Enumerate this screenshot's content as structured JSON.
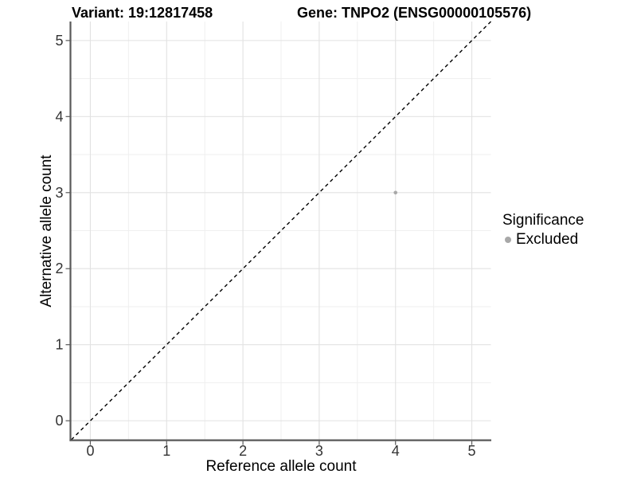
{
  "titles": {
    "variant": "Variant: 19:12817458",
    "gene": "Gene: TNPO2 (ENSG00000105576)"
  },
  "legend": {
    "title": "Significance",
    "items": [
      {
        "label": "Excluded",
        "color": "#a8a8a8"
      }
    ]
  },
  "chart_data": {
    "type": "scatter",
    "title": "Variant: 19:12817458 — Gene: TNPO2 (ENSG00000105576)",
    "xlabel": "Reference allele count",
    "ylabel": "Alternative allele count",
    "xlim": [
      -0.25,
      5.25
    ],
    "ylim": [
      -0.25,
      5.25
    ],
    "xticks": [
      0,
      1,
      2,
      3,
      4,
      5
    ],
    "yticks": [
      0,
      1,
      2,
      3,
      4,
      5
    ],
    "grid": {
      "major": true,
      "minor": true
    },
    "legend_position": "right",
    "series": [
      {
        "name": "Excluded",
        "color": "#a8a8a8",
        "points": [
          {
            "x": 4,
            "y": 3
          }
        ]
      }
    ],
    "reference_line": {
      "kind": "identity",
      "equation": "y = x",
      "style": "dashed",
      "color": "#000000"
    }
  },
  "style": {
    "axis_line_color": "#595959",
    "tick_text_color": "#333333",
    "grid_major_color": "#e2e2e2",
    "grid_minor_color": "#efefef",
    "background": "#ffffff"
  }
}
